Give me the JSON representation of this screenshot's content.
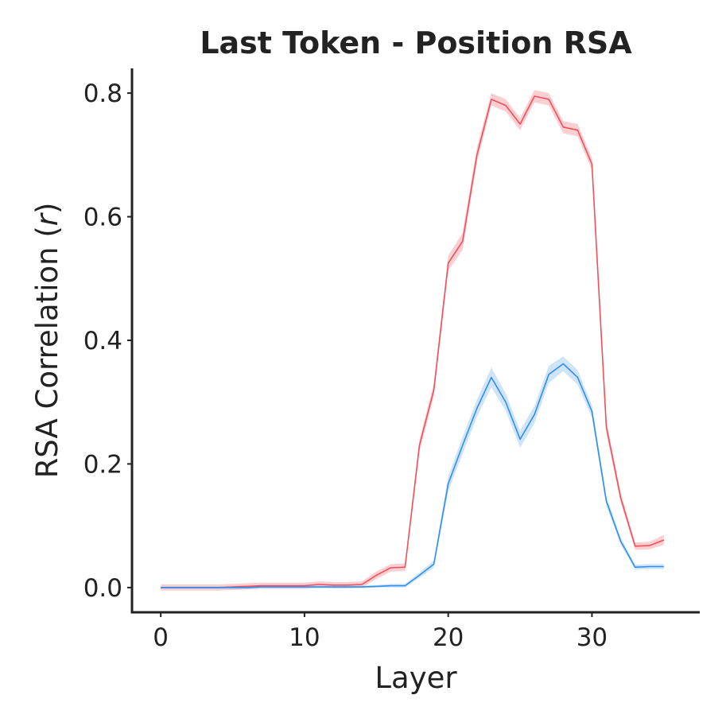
{
  "chart_data": {
    "type": "line",
    "title": "Last Token - Position RSA",
    "xlabel": "Layer",
    "ylabel_main": "RSA Correlation (",
    "ylabel_var": "r",
    "ylabel_end": ")",
    "xlim": [
      -2,
      37.5
    ],
    "ylim": [
      -0.04,
      0.84
    ],
    "xticks": [
      0,
      10,
      20,
      30
    ],
    "xtick_labels": [
      "0",
      "10",
      "20",
      "30"
    ],
    "yticks": [
      0.0,
      0.2,
      0.4,
      0.6,
      0.8
    ],
    "ytick_labels": [
      "0.0",
      "0.2",
      "0.4",
      "0.6",
      "0.8"
    ],
    "grid": false,
    "x": [
      0,
      1,
      2,
      3,
      4,
      5,
      6,
      7,
      8,
      9,
      10,
      11,
      12,
      13,
      14,
      15,
      16,
      17,
      18,
      19,
      20,
      21,
      22,
      23,
      24,
      25,
      26,
      27,
      28,
      29,
      30,
      31,
      32,
      33,
      34,
      35
    ],
    "series": [
      {
        "color": "#f0505a",
        "band_color": "#f7a5ad",
        "values": [
          0.0,
          0.0,
          0.0,
          0.0,
          0.0,
          0.001,
          0.002,
          0.003,
          0.003,
          0.003,
          0.003,
          0.005,
          0.004,
          0.004,
          0.005,
          0.02,
          0.032,
          0.033,
          0.23,
          0.32,
          0.525,
          0.56,
          0.7,
          0.79,
          0.78,
          0.75,
          0.795,
          0.79,
          0.745,
          0.74,
          0.685,
          0.26,
          0.145,
          0.067,
          0.068,
          0.077
        ],
        "band": [
          0.005,
          0.005,
          0.005,
          0.005,
          0.005,
          0.005,
          0.005,
          0.005,
          0.005,
          0.005,
          0.005,
          0.005,
          0.005,
          0.005,
          0.005,
          0.006,
          0.006,
          0.006,
          0.01,
          0.01,
          0.012,
          0.014,
          0.012,
          0.01,
          0.01,
          0.01,
          0.01,
          0.01,
          0.01,
          0.01,
          0.01,
          0.01,
          0.008,
          0.006,
          0.006,
          0.008
        ]
      },
      {
        "color": "#2e8fef",
        "band_color": "#a9cdf3",
        "values": [
          0.0,
          0.0,
          0.0,
          0.0,
          0.0,
          0.0,
          0.0,
          0.001,
          0.001,
          0.001,
          0.001,
          0.001,
          0.001,
          0.001,
          0.001,
          0.002,
          0.003,
          0.003,
          0.02,
          0.038,
          0.168,
          0.23,
          0.29,
          0.34,
          0.3,
          0.24,
          0.28,
          0.345,
          0.362,
          0.34,
          0.285,
          0.14,
          0.075,
          0.033,
          0.034,
          0.034
        ],
        "band": [
          0.002,
          0.002,
          0.002,
          0.002,
          0.002,
          0.002,
          0.002,
          0.002,
          0.002,
          0.002,
          0.002,
          0.002,
          0.002,
          0.002,
          0.002,
          0.002,
          0.003,
          0.003,
          0.004,
          0.006,
          0.012,
          0.014,
          0.014,
          0.016,
          0.014,
          0.014,
          0.014,
          0.014,
          0.012,
          0.012,
          0.01,
          0.008,
          0.006,
          0.004,
          0.004,
          0.004
        ]
      }
    ]
  }
}
